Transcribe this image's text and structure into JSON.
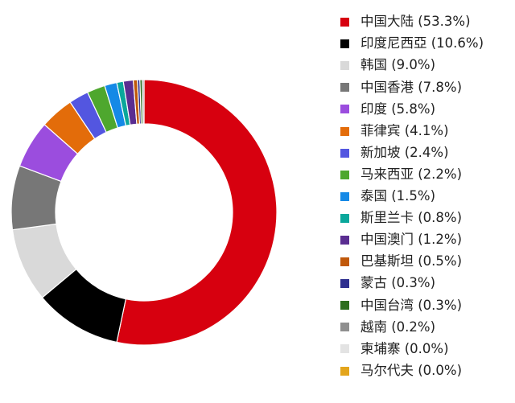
{
  "chart_data": {
    "type": "pie",
    "subtype": "donut",
    "title": "",
    "legend_position": "right",
    "slices": [
      {
        "label": "中国大陆 (53.3%)",
        "name": "中国大陆",
        "value": 53.3,
        "color": "#d7000f"
      },
      {
        "label": "印度尼西亞 (10.6%)",
        "name": "印度尼西亞",
        "value": 10.6,
        "color": "#000000"
      },
      {
        "label": "韩国 (9.0%)",
        "name": "韩国",
        "value": 9.0,
        "color": "#d9d9d9"
      },
      {
        "label": "中国香港 (7.8%)",
        "name": "中国香港",
        "value": 7.8,
        "color": "#777777"
      },
      {
        "label": "印度 (5.8%)",
        "name": "印度",
        "value": 5.8,
        "color": "#9b4dde"
      },
      {
        "label": "菲律宾 (4.1%)",
        "name": "菲律宾",
        "value": 4.1,
        "color": "#e36c0a"
      },
      {
        "label": "新加坡 (2.4%)",
        "name": "新加坡",
        "value": 2.4,
        "color": "#5356e0"
      },
      {
        "label": "马来西亚 (2.2%)",
        "name": "马来西亚",
        "value": 2.2,
        "color": "#4ea72e"
      },
      {
        "label": "泰国 (1.5%)",
        "name": "泰国",
        "value": 1.5,
        "color": "#1589e6"
      },
      {
        "label": "斯里兰卡 (0.8%)",
        "name": "斯里兰卡",
        "value": 0.8,
        "color": "#0aa79b"
      },
      {
        "label": "中国澳门 (1.2%)",
        "name": "中国澳门",
        "value": 1.2,
        "color": "#5a2d91"
      },
      {
        "label": "巴基斯坦 (0.5%)",
        "name": "巴基斯坦",
        "value": 0.5,
        "color": "#c0580a"
      },
      {
        "label": "蒙古 (0.3%)",
        "name": "蒙古",
        "value": 0.3,
        "color": "#2e2f8f"
      },
      {
        "label": "中国台湾 (0.3%)",
        "name": "中国台湾",
        "value": 0.3,
        "color": "#2e6e1f"
      },
      {
        "label": "越南 (0.2%)",
        "name": "越南",
        "value": 0.2,
        "color": "#8f8f8f"
      },
      {
        "label": "柬埔寨 (0.0%)",
        "name": "柬埔寨",
        "value": 0.0,
        "color": "#e3e3e3"
      },
      {
        "label": "马尔代夫 (0.0%)",
        "name": "马尔代夫",
        "value": 0.0,
        "color": "#e3a51c"
      }
    ]
  }
}
